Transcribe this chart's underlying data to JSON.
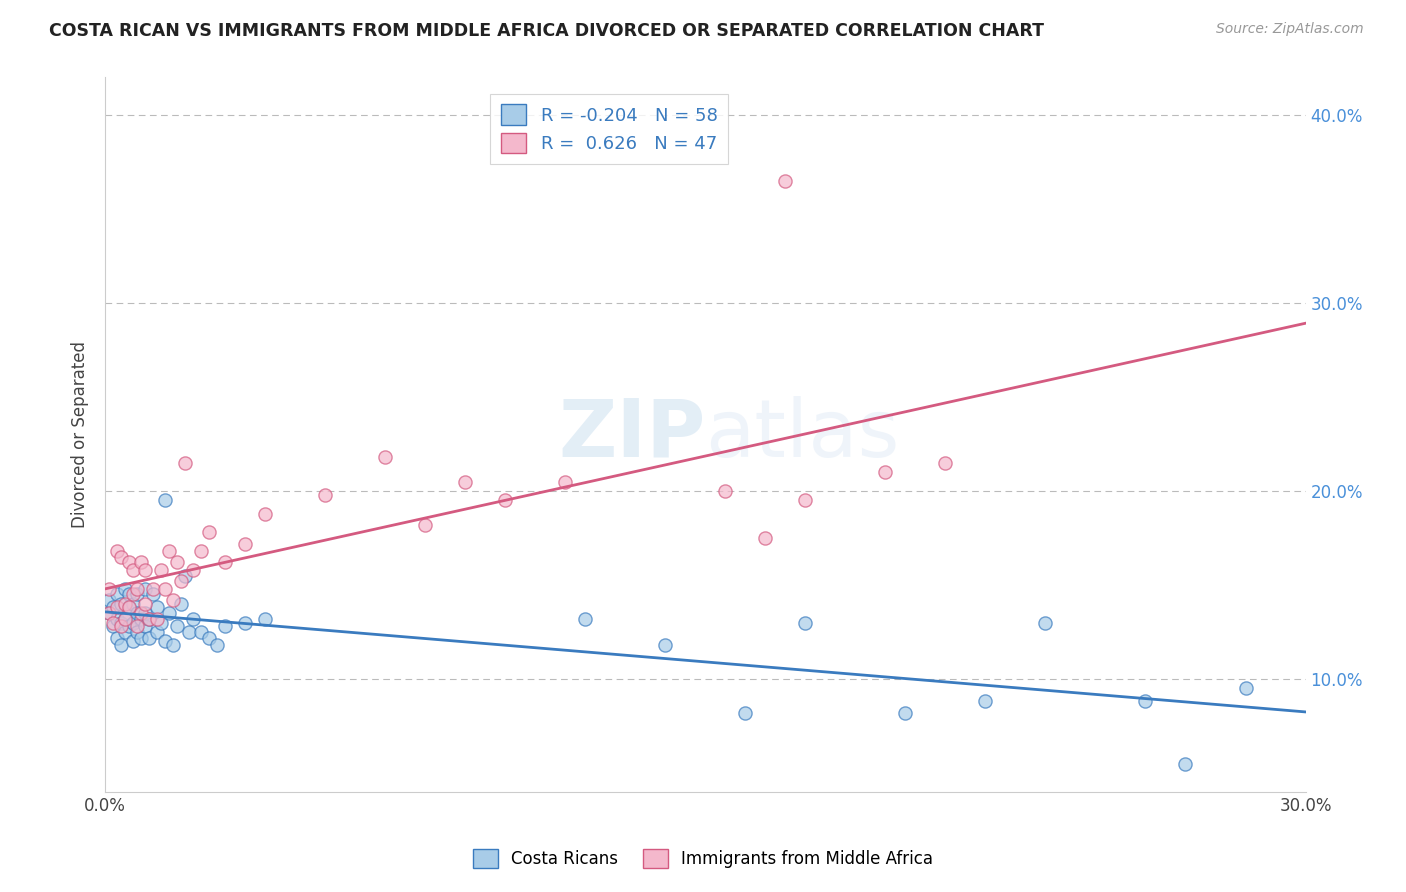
{
  "title": "COSTA RICAN VS IMMIGRANTS FROM MIDDLE AFRICA DIVORCED OR SEPARATED CORRELATION CHART",
  "source": "Source: ZipAtlas.com",
  "ylabel": "Divorced or Separated",
  "legend_label1": "Costa Ricans",
  "legend_label2": "Immigrants from Middle Africa",
  "r1": -0.204,
  "n1": 58,
  "r2": 0.626,
  "n2": 47,
  "color1": "#a8cce8",
  "color2": "#f4b8cc",
  "line_color1": "#3a7bbf",
  "line_color2": "#d45a80",
  "xlim": [
    0.0,
    0.3
  ],
  "ylim": [
    0.04,
    0.42
  ],
  "x_ticks": [
    0.0,
    0.05,
    0.1,
    0.15,
    0.2,
    0.25,
    0.3
  ],
  "x_tick_labels": [
    "0.0%",
    "",
    "",
    "",
    "",
    "",
    "30.0%"
  ],
  "y_ticks": [
    0.1,
    0.2,
    0.3,
    0.4
  ],
  "y_tick_labels": [
    "10.0%",
    "20.0%",
    "30.0%",
    "40.0%"
  ],
  "blue_x": [
    0.001,
    0.001,
    0.002,
    0.002,
    0.003,
    0.003,
    0.003,
    0.004,
    0.004,
    0.004,
    0.005,
    0.005,
    0.005,
    0.006,
    0.006,
    0.006,
    0.007,
    0.007,
    0.007,
    0.008,
    0.008,
    0.008,
    0.009,
    0.009,
    0.01,
    0.01,
    0.01,
    0.011,
    0.011,
    0.012,
    0.013,
    0.013,
    0.014,
    0.015,
    0.015,
    0.016,
    0.017,
    0.018,
    0.019,
    0.02,
    0.021,
    0.022,
    0.024,
    0.026,
    0.028,
    0.03,
    0.035,
    0.04,
    0.12,
    0.14,
    0.16,
    0.175,
    0.2,
    0.22,
    0.235,
    0.26,
    0.27,
    0.285
  ],
  "blue_y": [
    0.135,
    0.142,
    0.128,
    0.138,
    0.122,
    0.132,
    0.145,
    0.118,
    0.13,
    0.14,
    0.125,
    0.132,
    0.148,
    0.128,
    0.138,
    0.145,
    0.12,
    0.13,
    0.14,
    0.125,
    0.135,
    0.145,
    0.122,
    0.132,
    0.128,
    0.135,
    0.148,
    0.122,
    0.132,
    0.145,
    0.125,
    0.138,
    0.13,
    0.195,
    0.12,
    0.135,
    0.118,
    0.128,
    0.14,
    0.155,
    0.125,
    0.132,
    0.125,
    0.122,
    0.118,
    0.128,
    0.13,
    0.132,
    0.132,
    0.118,
    0.082,
    0.13,
    0.082,
    0.088,
    0.13,
    0.088,
    0.055,
    0.095
  ],
  "pink_x": [
    0.001,
    0.001,
    0.002,
    0.003,
    0.003,
    0.004,
    0.004,
    0.005,
    0.005,
    0.006,
    0.006,
    0.007,
    0.007,
    0.008,
    0.008,
    0.009,
    0.009,
    0.01,
    0.01,
    0.011,
    0.012,
    0.013,
    0.014,
    0.015,
    0.016,
    0.017,
    0.018,
    0.019,
    0.02,
    0.022,
    0.024,
    0.026,
    0.03,
    0.035,
    0.04,
    0.055,
    0.07,
    0.08,
    0.09,
    0.1,
    0.115,
    0.155,
    0.165,
    0.175,
    0.195,
    0.21,
    0.17
  ],
  "pink_y": [
    0.135,
    0.148,
    0.13,
    0.138,
    0.168,
    0.128,
    0.165,
    0.132,
    0.14,
    0.138,
    0.162,
    0.145,
    0.158,
    0.128,
    0.148,
    0.135,
    0.162,
    0.14,
    0.158,
    0.132,
    0.148,
    0.132,
    0.158,
    0.148,
    0.168,
    0.142,
    0.162,
    0.152,
    0.215,
    0.158,
    0.168,
    0.178,
    0.162,
    0.172,
    0.188,
    0.198,
    0.218,
    0.182,
    0.205,
    0.195,
    0.205,
    0.2,
    0.175,
    0.195,
    0.21,
    0.215,
    0.365
  ]
}
